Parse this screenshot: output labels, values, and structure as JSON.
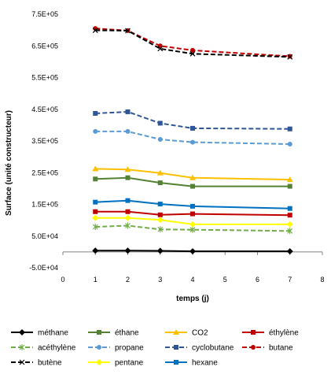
{
  "chart_data": {
    "type": "line",
    "xlabel": "temps (j)",
    "ylabel": "Surface (unité constructeur)",
    "xlim": [
      0,
      8
    ],
    "ylim": [
      -50000,
      750000
    ],
    "x_ticks": [
      "0",
      "1",
      "2",
      "3",
      "4",
      "5",
      "6",
      "7",
      "8"
    ],
    "y_ticks": [
      "-5.0E+04",
      "5.0E+04",
      "1.5E+05",
      "2.5E+05",
      "3.5E+05",
      "4.5E+05",
      "5.5E+05",
      "6.5E+05",
      "7.5E+05"
    ],
    "grid": false,
    "legend_position": "bottom",
    "x": [
      1,
      2,
      3,
      4,
      7
    ],
    "series": [
      {
        "name": "méthane",
        "color": "#000000",
        "dash": "solid",
        "marker": "diamond",
        "values": [
          4000,
          4000,
          3500,
          2000,
          2000
        ]
      },
      {
        "name": "éthane",
        "color": "#548235",
        "dash": "solid",
        "marker": "square",
        "values": [
          230000,
          234000,
          218000,
          207000,
          207000
        ]
      },
      {
        "name": "CO2",
        "color": "#FFC000",
        "dash": "solid",
        "marker": "triangle",
        "values": [
          262000,
          260000,
          249000,
          234000,
          228000
        ]
      },
      {
        "name": "éthylène",
        "color": "#C00000",
        "dash": "solid",
        "marker": "square",
        "values": [
          127000,
          127000,
          117000,
          120000,
          116000
        ]
      },
      {
        "name": "acéthylène",
        "color": "#70AD47",
        "dash": "dash",
        "marker": "star",
        "values": [
          79000,
          83000,
          71000,
          70000,
          66000
        ]
      },
      {
        "name": "propane",
        "color": "#5B9BD5",
        "dash": "dash",
        "marker": "circle",
        "values": [
          380000,
          380000,
          355000,
          346000,
          340000
        ]
      },
      {
        "name": "cyclobutane",
        "color": "#2F5597",
        "dash": "dash",
        "marker": "square",
        "values": [
          437000,
          442000,
          406000,
          390000,
          388000
        ]
      },
      {
        "name": "butane",
        "color": "#C00000",
        "dash": "dash",
        "marker": "circle",
        "values": [
          705000,
          698000,
          650000,
          636000,
          617000
        ]
      },
      {
        "name": "butène",
        "color": "#000000",
        "dash": "dash",
        "marker": "x",
        "values": [
          699000,
          698000,
          641000,
          625000,
          615000
        ]
      },
      {
        "name": "pentane",
        "color": "#FFFF00",
        "dash": "solid",
        "marker": "diamond",
        "values": [
          107000,
          107000,
          101000,
          87000,
          87000
        ]
      },
      {
        "name": "hexane",
        "color": "#0070C0",
        "dash": "solid",
        "marker": "square",
        "values": [
          157000,
          162000,
          151000,
          144000,
          137000
        ]
      }
    ]
  }
}
